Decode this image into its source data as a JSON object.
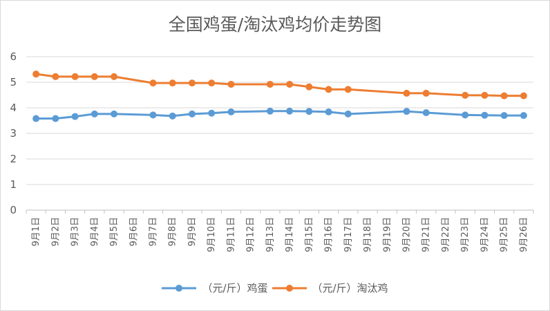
{
  "chart_data": {
    "type": "line",
    "title": "全国鸡蛋/淘汰鸡均价走势图",
    "xlabel": "",
    "ylabel": "",
    "ylim": [
      0,
      6
    ],
    "yticks": [
      0,
      1,
      2,
      3,
      4,
      5,
      6
    ],
    "grid": true,
    "legend_position": "bottom",
    "categories": [
      "9月1日",
      "9月2日",
      "9月3日",
      "9月4日",
      "9月5日",
      "9月6日",
      "9月7日",
      "9月8日",
      "9月9日",
      "9月10日",
      "9月11日",
      "9月12日",
      "9月13日",
      "9月14日",
      "9月15日",
      "9月16日",
      "9月17日",
      "9月18日",
      "9月19日",
      "9月20日",
      "9月21日",
      "9月22日",
      "9月23日",
      "9月24日",
      "9月25日",
      "9月26日"
    ],
    "series": [
      {
        "name": "（元/斤）鸡蛋",
        "color": "#5b9bd5",
        "values": [
          3.58,
          3.58,
          3.66,
          3.76,
          3.76,
          null,
          3.72,
          3.68,
          3.76,
          3.79,
          3.84,
          null,
          3.87,
          3.87,
          3.86,
          3.84,
          3.76,
          null,
          null,
          3.86,
          3.81,
          null,
          3.72,
          3.71,
          3.7,
          3.7
        ]
      },
      {
        "name": "（元/斤）淘汰鸡",
        "color": "#ed7d31",
        "values": [
          5.32,
          5.22,
          5.22,
          5.22,
          5.22,
          null,
          4.97,
          4.97,
          4.97,
          4.97,
          4.92,
          null,
          4.92,
          4.92,
          4.82,
          4.72,
          4.72,
          null,
          null,
          4.57,
          4.57,
          null,
          4.49,
          4.49,
          4.47,
          4.47
        ]
      }
    ]
  }
}
